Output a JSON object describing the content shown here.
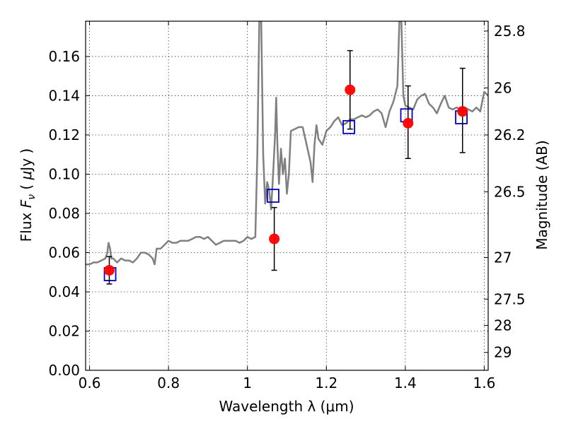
{
  "chart_data": {
    "type": "scatter",
    "xlabel": "Wavelength  λ (μm)",
    "ylabel": "Flux  F_ν  ( μJy )",
    "ylabel_right": "Magnitude (AB)",
    "xlim": [
      0.59,
      1.61
    ],
    "ylim": [
      0.0,
      0.178
    ],
    "grid": true,
    "x_ticks": [
      0.6,
      0.8,
      1.0,
      1.2,
      1.4,
      1.6
    ],
    "x_tick_labels": [
      "0.6",
      "0.8",
      "1",
      "1.2",
      "1.4",
      "1.6"
    ],
    "y_ticks": [
      0.0,
      0.02,
      0.04,
      0.06,
      0.08,
      0.1,
      0.12,
      0.14,
      0.16
    ],
    "y_tick_labels": [
      "0.00",
      "0.02",
      "0.04",
      "0.06",
      "0.08",
      "0.10",
      "0.12",
      "0.14",
      "0.16"
    ],
    "right_axis_ticks": [
      {
        "label": "25.8",
        "flux": 0.173
      },
      {
        "label": "26",
        "flux": 0.144
      },
      {
        "label": "26.2",
        "flux": 0.12
      },
      {
        "label": "26.5",
        "flux": 0.091
      },
      {
        "label": "27",
        "flux": 0.0575
      },
      {
        "label": "27.5",
        "flux": 0.0363
      },
      {
        "label": "28",
        "flux": 0.0229
      },
      {
        "label": "29",
        "flux": 0.0091
      }
    ],
    "series": [
      {
        "kind": "line",
        "color": "#808080",
        "x": [
          0.59,
          0.6,
          0.61,
          0.62,
          0.63,
          0.64,
          0.645,
          0.648,
          0.652,
          0.655,
          0.66,
          0.67,
          0.68,
          0.69,
          0.7,
          0.71,
          0.72,
          0.73,
          0.74,
          0.75,
          0.76,
          0.765,
          0.77,
          0.78,
          0.79,
          0.8,
          0.81,
          0.82,
          0.83,
          0.84,
          0.85,
          0.86,
          0.87,
          0.88,
          0.89,
          0.9,
          0.91,
          0.92,
          0.93,
          0.94,
          0.95,
          0.96,
          0.97,
          0.98,
          0.99,
          1.0,
          1.01,
          1.02,
          1.025,
          1.03,
          1.035,
          1.04,
          1.045,
          1.05,
          1.055,
          1.06,
          1.065,
          1.07,
          1.073,
          1.076,
          1.08,
          1.085,
          1.09,
          1.095,
          1.1,
          1.105,
          1.11,
          1.12,
          1.13,
          1.14,
          1.15,
          1.16,
          1.165,
          1.17,
          1.175,
          1.18,
          1.19,
          1.2,
          1.21,
          1.22,
          1.23,
          1.24,
          1.25,
          1.26,
          1.27,
          1.28,
          1.29,
          1.3,
          1.31,
          1.32,
          1.33,
          1.34,
          1.35,
          1.36,
          1.37,
          1.38,
          1.385,
          1.39,
          1.395,
          1.4,
          1.41,
          1.42,
          1.43,
          1.44,
          1.45,
          1.46,
          1.47,
          1.48,
          1.49,
          1.5,
          1.51,
          1.52,
          1.53,
          1.54,
          1.55,
          1.56,
          1.57,
          1.58,
          1.59,
          1.6,
          1.61
        ],
        "y": [
          0.054,
          0.054,
          0.055,
          0.055,
          0.056,
          0.057,
          0.06,
          0.065,
          0.062,
          0.057,
          0.057,
          0.055,
          0.057,
          0.056,
          0.056,
          0.055,
          0.057,
          0.06,
          0.06,
          0.059,
          0.057,
          0.054,
          0.062,
          0.062,
          0.064,
          0.066,
          0.065,
          0.065,
          0.066,
          0.066,
          0.066,
          0.067,
          0.068,
          0.068,
          0.067,
          0.068,
          0.066,
          0.064,
          0.065,
          0.066,
          0.066,
          0.066,
          0.066,
          0.065,
          0.066,
          0.068,
          0.067,
          0.068,
          0.11,
          0.178,
          0.178,
          0.11,
          0.085,
          0.096,
          0.092,
          0.082,
          0.1,
          0.12,
          0.139,
          0.115,
          0.095,
          0.113,
          0.1,
          0.108,
          0.09,
          0.1,
          0.122,
          0.123,
          0.124,
          0.124,
          0.115,
          0.106,
          0.096,
          0.115,
          0.125,
          0.118,
          0.115,
          0.122,
          0.124,
          0.127,
          0.129,
          0.125,
          0.126,
          0.128,
          0.128,
          0.129,
          0.13,
          0.129,
          0.13,
          0.132,
          0.133,
          0.131,
          0.124,
          0.132,
          0.137,
          0.145,
          0.178,
          0.178,
          0.14,
          0.135,
          0.134,
          0.133,
          0.138,
          0.14,
          0.141,
          0.136,
          0.134,
          0.131,
          0.136,
          0.14,
          0.134,
          0.133,
          0.134,
          0.133,
          0.134,
          0.133,
          0.132,
          0.134,
          0.132,
          0.142,
          0.14
        ]
      },
      {
        "kind": "errorbar",
        "marker": "circle",
        "color": "#ff0000",
        "x": [
          0.65,
          1.068,
          1.26,
          1.407,
          1.545
        ],
        "y": [
          0.051,
          0.067,
          0.143,
          0.126,
          0.132
        ],
        "yerr_low": [
          0.007,
          0.016,
          0.02,
          0.018,
          0.021
        ],
        "yerr_high": [
          0.007,
          0.016,
          0.02,
          0.019,
          0.022
        ]
      },
      {
        "kind": "points",
        "marker": "open-square",
        "color": "#0000cc",
        "x": [
          0.652,
          1.065,
          1.257,
          1.403,
          1.542
        ],
        "y": [
          0.049,
          0.089,
          0.124,
          0.13,
          0.129
        ]
      }
    ]
  }
}
